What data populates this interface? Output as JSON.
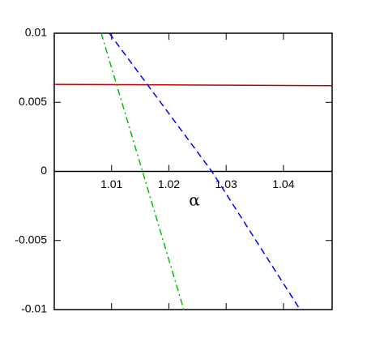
{
  "chart_data": {
    "type": "line",
    "x_label": "α",
    "xlim": [
      1.0,
      1.0485
    ],
    "xticks": [
      1.01,
      1.02,
      1.03,
      1.04
    ],
    "ylim": [
      -0.01,
      0.01
    ],
    "yticks": [
      -0.01,
      -0.005,
      0,
      0.005,
      0.01
    ],
    "series": [
      {
        "color": "#c00000",
        "style": "solid",
        "x": [
          1.0,
          1.0485
        ],
        "values": [
          0.0063,
          0.0062
        ]
      },
      {
        "color": "#0000ff",
        "style": "dashed",
        "x": [
          1.0096,
          1.0275,
          1.0429
        ],
        "values": [
          0.01,
          0,
          -0.01
        ]
      },
      {
        "color": "#00c000",
        "style": "dashdot",
        "x": [
          1.0082,
          1.0154,
          1.0226
        ],
        "values": [
          0.01,
          0,
          -0.01
        ]
      }
    ]
  }
}
